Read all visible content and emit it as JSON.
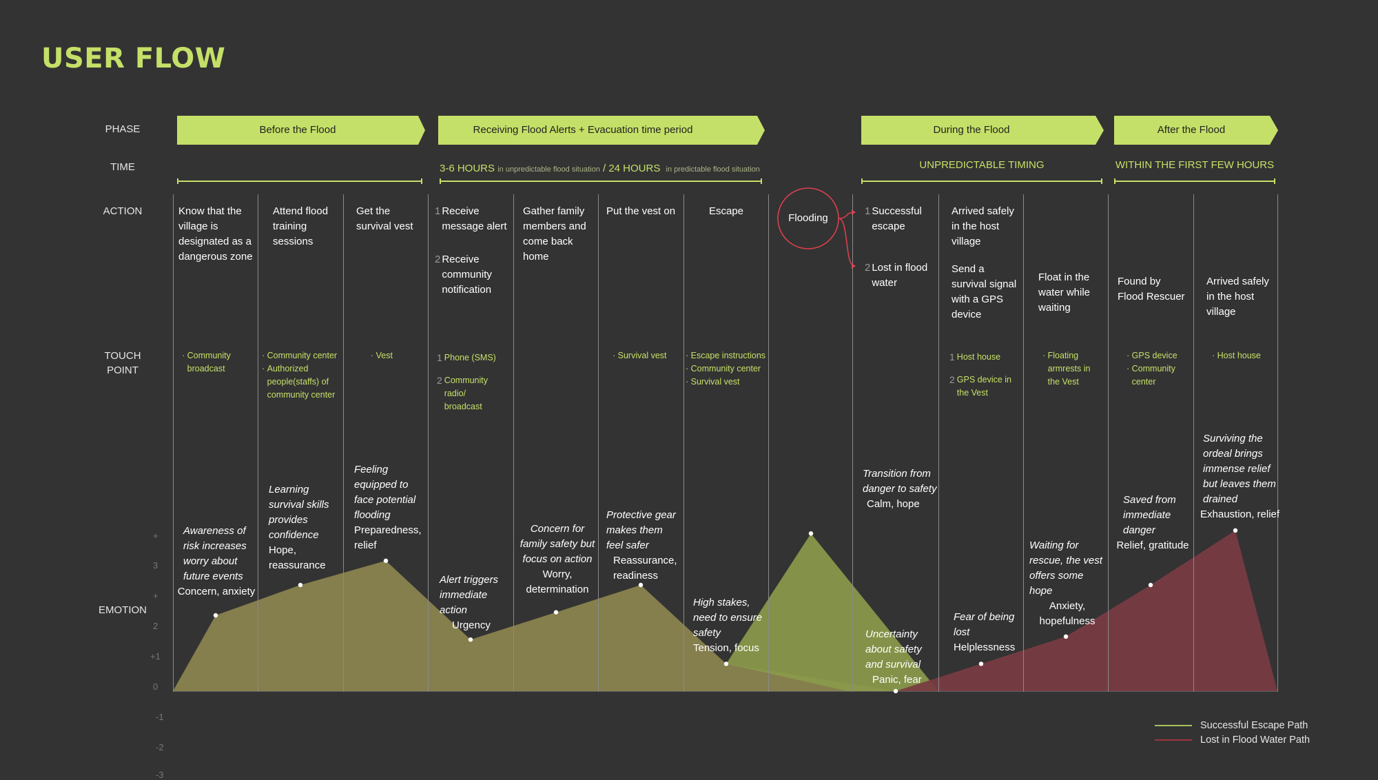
{
  "header": {
    "title": "USER FLOW"
  },
  "row_labels": {
    "phase": "PHASE",
    "time": "TIME",
    "action": "ACTION",
    "touch_point": "TOUCH POINT",
    "emotion": "EMOTION"
  },
  "phases": [
    {
      "label": "Before the Flood"
    },
    {
      "label": "Receiving Flood Alerts + Evacuation time period"
    },
    {
      "label": "During the Flood"
    },
    {
      "label": "After the Flood"
    }
  ],
  "time": {
    "t1_main": "3-6 HOURS",
    "t1_note": "in unpredictable flood situation",
    "t1_sep": "/ 24 HOURS",
    "t1_note2": "in predictable flood situation",
    "t2": "UNPREDICTABLE TIMING",
    "t3": "WITHIN THE FIRST FEW HOURS"
  },
  "actions": [
    {
      "text": "Know that the village is designated as a dangerous zone"
    },
    {
      "text": "Attend flood training sessions"
    },
    {
      "text": "Get the survival vest"
    },
    {
      "num1": "1",
      "text1": "Receive message alert",
      "num2": "2",
      "text2": "Receive community notification"
    },
    {
      "text": "Gather family members and come back home"
    },
    {
      "text": "Put the vest on"
    },
    {
      "text": "Escape"
    },
    {
      "text": "Flooding"
    },
    {
      "num1": "1",
      "text1": "Successful escape",
      "num2": "2",
      "text2": "Lost in flood water"
    },
    {
      "text1": "Arrived safely in the host village",
      "text2": "Send a survival signal with a GPS device"
    },
    {
      "text": "Float in the water while waiting"
    },
    {
      "text": "Found by Flood Rescuer"
    },
    {
      "text": "Arrived safely in the host village"
    }
  ],
  "touch_points": [
    {
      "items": [
        "Community broadcast"
      ]
    },
    {
      "items": [
        "Community center",
        "Authorized people(staffs) of community center"
      ]
    },
    {
      "items": [
        "Vest"
      ]
    },
    {
      "num1": "1",
      "text1": "Phone (SMS)",
      "num2": "2",
      "text2": "Community radio/ broadcast"
    },
    {
      "items": []
    },
    {
      "items": [
        "Survival vest"
      ]
    },
    {
      "items": [
        "Escape instructions",
        "Community center",
        "Survival vest"
      ]
    },
    {
      "items": []
    },
    {
      "items": []
    },
    {
      "num1": "1",
      "text1": "Host house",
      "num2": "2",
      "text2": "GPS device in the Vest"
    },
    {
      "items": [
        "Floating armrests in the Vest"
      ]
    },
    {
      "items": [
        "GPS device",
        "Community center"
      ]
    },
    {
      "items": [
        "Host house"
      ]
    }
  ],
  "emotions": [
    {
      "desc": "Awareness of risk increases worry about future events",
      "label": "Concern, anxiety"
    },
    {
      "desc": "Learning survival skills provides confidence",
      "label": "Hope, reassurance"
    },
    {
      "desc": "Feeling equipped to face potential flooding",
      "label": "Preparedness, relief"
    },
    {
      "desc": "Alert triggers immediate action",
      "label": "Urgency"
    },
    {
      "desc": "Concern for family safety but focus on action",
      "label": "Worry, determination"
    },
    {
      "desc": "Protective gear makes them feel safer",
      "label": "Reassurance, readiness"
    },
    {
      "desc": "High stakes, need to ensure safety",
      "label": "Tension, focus"
    },
    {
      "desc": "Transition from danger to safety",
      "label": "Calm, hope"
    },
    {
      "desc": "Uncertainty about safety and survival",
      "label": "Panic, fear"
    },
    {
      "desc": "Fear of being lost",
      "label": "Helplessness"
    },
    {
      "desc": "Waiting for rescue, the vest offers some hope",
      "label": "Anxiety, hopefulness"
    },
    {
      "desc": "Saved from immediate danger",
      "label": "Relief, gratitude"
    },
    {
      "desc": "Surviving the ordeal brings immense relief but leaves them drained",
      "label": "Exhaustion, relief"
    }
  ],
  "chart_data": {
    "type": "area",
    "ylim": [
      -3,
      5
    ],
    "yticks": [
      "+",
      "3",
      "+",
      "2",
      "+1",
      "0",
      "-1",
      "-2",
      "-3"
    ],
    "series": [
      {
        "name": "Successful Escape Path",
        "color": "#8a9a4a",
        "values": [
          2.5,
          3.5,
          4.3,
          1.7,
          2.6,
          3.5,
          0.9,
          5.2
        ]
      },
      {
        "name": "Lost in Flood Water Path",
        "color": "#7a3b43",
        "values": [
          0.0,
          0.9,
          1.8,
          3.5,
          5.3
        ]
      }
    ]
  },
  "legend": [
    {
      "label": "Successful Escape Path",
      "color": "#a6c45a"
    },
    {
      "label": "Lost in Flood Water Path",
      "color": "#a0343f"
    }
  ]
}
